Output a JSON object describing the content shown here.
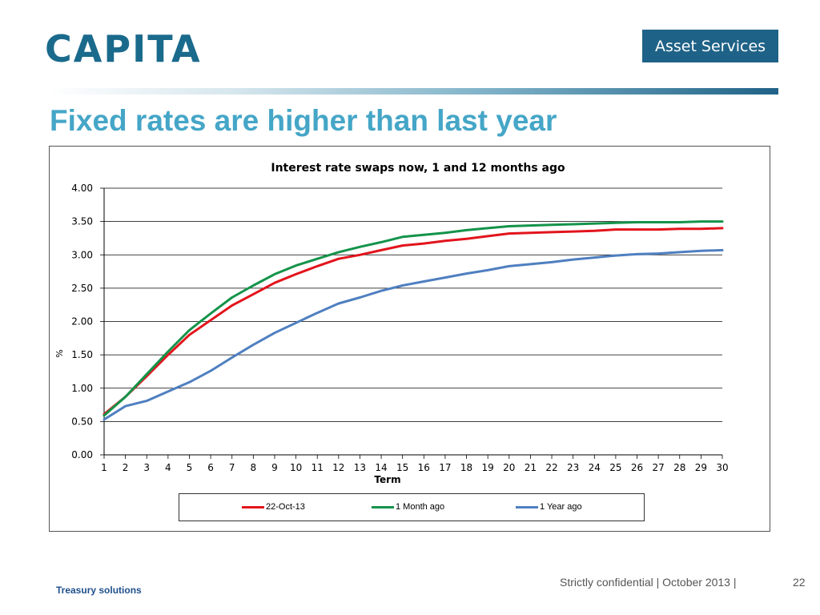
{
  "header": {
    "logo_text": "CAPITA",
    "badge_text": "Asset Services",
    "brand_color": "#1a6a8c"
  },
  "slide": {
    "title": "Fixed rates are higher than last year"
  },
  "chart_data": {
    "type": "line",
    "title": "Interest rate swaps now, 1 and 12 months ago",
    "xlabel": "Term",
    "ylabel": "%",
    "x": [
      1,
      2,
      3,
      4,
      5,
      6,
      7,
      8,
      9,
      10,
      11,
      12,
      13,
      14,
      15,
      16,
      17,
      18,
      19,
      20,
      21,
      22,
      23,
      24,
      25,
      26,
      27,
      28,
      29,
      30
    ],
    "ylim": [
      0,
      4
    ],
    "yticks": [
      "0.00",
      "0.50",
      "1.00",
      "1.50",
      "2.00",
      "2.50",
      "3.00",
      "3.50",
      "4.00"
    ],
    "grid": true,
    "legend_position": "bottom",
    "series": [
      {
        "name": "22-Oct-13",
        "color": "#e2141c",
        "values": [
          0.61,
          0.87,
          1.18,
          1.5,
          1.8,
          2.02,
          2.24,
          2.41,
          2.58,
          2.71,
          2.83,
          2.94,
          3.0,
          3.07,
          3.14,
          3.17,
          3.21,
          3.24,
          3.28,
          3.32,
          3.33,
          3.34,
          3.35,
          3.36,
          3.38,
          3.38,
          3.38,
          3.39,
          3.39,
          3.4
        ]
      },
      {
        "name": "1 Month ago",
        "color": "#14934a",
        "values": [
          0.59,
          0.87,
          1.21,
          1.55,
          1.87,
          2.12,
          2.36,
          2.54,
          2.71,
          2.84,
          2.94,
          3.04,
          3.12,
          3.19,
          3.27,
          3.3,
          3.33,
          3.37,
          3.4,
          3.43,
          3.44,
          3.45,
          3.46,
          3.47,
          3.48,
          3.49,
          3.49,
          3.49,
          3.5,
          3.5
        ]
      },
      {
        "name": "1 Year ago",
        "color": "#4f7fc0",
        "values": [
          0.53,
          0.73,
          0.81,
          0.95,
          1.09,
          1.26,
          1.46,
          1.65,
          1.83,
          1.98,
          2.13,
          2.27,
          2.36,
          2.46,
          2.54,
          2.6,
          2.66,
          2.72,
          2.77,
          2.83,
          2.86,
          2.89,
          2.93,
          2.96,
          2.99,
          3.01,
          3.02,
          3.04,
          3.06,
          3.07
        ]
      }
    ]
  },
  "footer": {
    "left": "Treasury solutions",
    "right": "Strictly confidential | October 2013 |",
    "page": "22"
  }
}
